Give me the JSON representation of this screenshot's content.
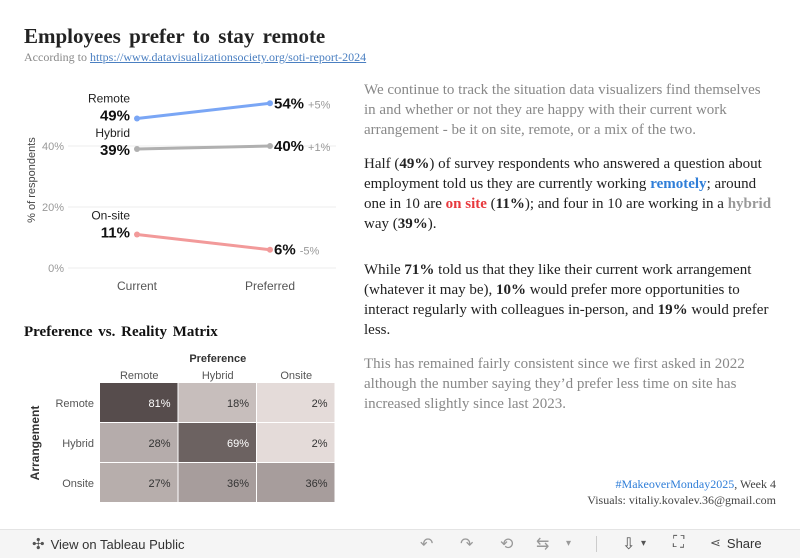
{
  "header": {
    "title": "Employees prefer to stay remote",
    "subtitle_prefix": "According to",
    "subtitle_link": "https://www.datavisualizationsociety.org/soti-report-2024"
  },
  "matrix_title": "Preference vs. Reality Matrix",
  "chart_data": [
    {
      "type": "line",
      "ylabel": "% of respondents",
      "x": [
        "Current",
        "Preferred"
      ],
      "ylim": [
        0,
        57
      ],
      "yticks": [
        "0%",
        "20%",
        "40%"
      ],
      "ytick_values": [
        0,
        20,
        40
      ],
      "grid": true,
      "series": [
        {
          "name": "Remote",
          "values": [
            49,
            54
          ],
          "start_label": "49%",
          "end_label": "54%",
          "change": "+5%",
          "color": "#7aa6f5"
        },
        {
          "name": "Hybrid",
          "values": [
            39,
            40
          ],
          "start_label": "39%",
          "end_label": "40%",
          "change": "+1%",
          "color": "#b0b0b0"
        },
        {
          "name": "On-site",
          "values": [
            11,
            6
          ],
          "start_label": "11%",
          "end_label": "6%",
          "change": "-5%",
          "color": "#f29a9a"
        }
      ]
    },
    {
      "type": "heatmap",
      "xlabel": "Preference",
      "ylabel": "Arrangement",
      "x": [
        "Remote",
        "Hybrid",
        "Onsite"
      ],
      "y": [
        "Remote",
        "Hybrid",
        "Onsite"
      ],
      "values": [
        [
          81,
          18,
          2
        ],
        [
          28,
          69,
          2
        ],
        [
          27,
          36,
          36
        ]
      ],
      "labels": [
        [
          "81%",
          "18%",
          "2%"
        ],
        [
          "28%",
          "69%",
          "2%"
        ],
        [
          "27%",
          "36%",
          "36%"
        ]
      ]
    }
  ],
  "text": {
    "p1": "We continue to track the situation data visualizers find themselves in and whether or not they are happy with their current work arrangement - be it on site, remote, or a mix of the two.",
    "p2_a": "Half (",
    "p2_b": "49%",
    "p2_c": ") of survey respondents who answered a question about employment told us they are currently working ",
    "p2_d": "remotely",
    "p2_e": "; around one in 10 are ",
    "p2_f": "on site",
    "p2_g": " (",
    "p2_h": "11%",
    "p2_i": "); and four in 10 are working in a ",
    "p2_j": "hybrid",
    "p2_k": " way (",
    "p2_l": "39%",
    "p2_m": ").",
    "p3_a": "While ",
    "p3_b": "71%",
    "p3_c": " told us that they like their current work arrangement (whatever it may be), ",
    "p3_d": "10%",
    "p3_e": " would prefer more opportunities to interact regularly with colleagues in-person, and ",
    "p3_f": "19%",
    "p3_g": " would prefer less.",
    "p4": "This has remained fairly consistent since we first asked in 2022 although the number saying they’d prefer less time on site has increased slightly since last 2023."
  },
  "credit": {
    "hashtag": "#MakeoverMonday2025",
    "week": ", Week 4",
    "visuals": "Visuals: vitaliy.kovalev.36@gmail.com"
  },
  "toolbar": {
    "view_label": "View on Tableau Public",
    "share_label": "Share"
  },
  "colors": {
    "remote": "#2f7ed8",
    "onsite": "#e8383d",
    "hybrid": "#999999"
  }
}
